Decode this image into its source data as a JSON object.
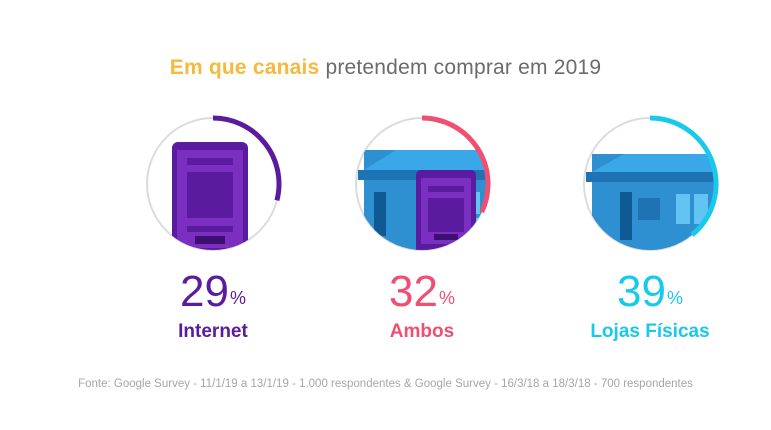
{
  "title": {
    "highlight": "Em que canais",
    "rest": " pretendem comprar em 2019",
    "highlight_color": "#f6b93b"
  },
  "percent_sign": "%",
  "chart_data": {
    "type": "pie",
    "title": "Em que canais pretendem comprar em 2019",
    "categories": [
      "Internet",
      "Ambos",
      "Lojas Físicas"
    ],
    "values": [
      29,
      32,
      39
    ],
    "unit": "%",
    "colors": [
      "#5b1b9e",
      "#ef4f72",
      "#19c9ec"
    ]
  },
  "items": [
    {
      "label": "Internet",
      "value": 29,
      "value_text": "29",
      "color": "#5b1b9e",
      "icon": "tablet-icon"
    },
    {
      "label": "Ambos",
      "value": 32,
      "value_text": "32",
      "color": "#ef4f72",
      "icon": "store-and-tablet-icon"
    },
    {
      "label": "Lojas Físicas",
      "value": 39,
      "value_text": "39",
      "color": "#19c9ec",
      "icon": "store-icon"
    }
  ],
  "source": "Fonte: Google Survey - 11/1/19 a 13/1/19 - 1.000 respondentes & Google Survey - 16/3/18 a 18/3/18 - 700 respondentes"
}
